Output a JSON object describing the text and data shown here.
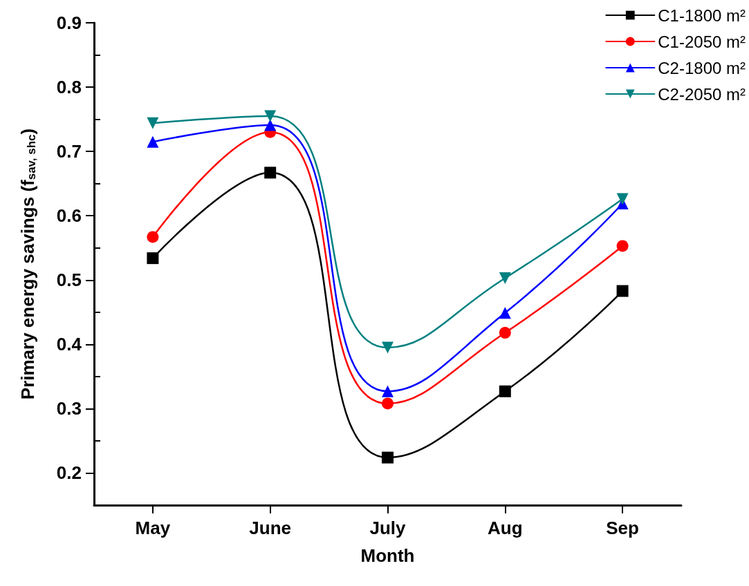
{
  "chart_data": {
    "type": "line",
    "xlabel": "Month",
    "ylabel": "Primary energy savings (f$_{sav, shc}$)",
    "categories": [
      "May",
      "June",
      "July",
      "Aug",
      "Sep"
    ],
    "series": [
      {
        "name": "C1-1800 m²",
        "color": "#000000",
        "marker": "square",
        "values": [
          0.534,
          0.667,
          0.224,
          0.327,
          0.483
        ]
      },
      {
        "name": "C1-2050 m²",
        "color": "#ff0000",
        "marker": "circle",
        "values": [
          0.567,
          0.73,
          0.308,
          0.418,
          0.553
        ]
      },
      {
        "name": "C2-1800 m²",
        "color": "#0000ff",
        "marker": "triangle",
        "values": [
          0.715,
          0.741,
          0.327,
          0.449,
          0.619
        ]
      },
      {
        "name": "C2-2050 m²",
        "color": "#008080",
        "marker": "triangle-down",
        "values": [
          0.744,
          0.755,
          0.395,
          0.503,
          0.626
        ]
      }
    ],
    "ylim": [
      0.15,
      0.9
    ],
    "yticks": [
      0.2,
      {
        "value": 0.25,
        "label": null
      },
      0.3,
      {
        "value": 0.35,
        "label": null
      },
      0.4,
      {
        "value": 0.45,
        "label": null
      },
      0.5,
      {
        "value": 0.55,
        "label": null
      },
      0.6,
      {
        "value": 0.65,
        "label": null
      },
      0.7,
      {
        "value": 0.75,
        "label": null
      },
      0.8,
      {
        "value": 0.85,
        "label": null
      },
      0.9
    ],
    "grid": false,
    "legend": "top right",
    "line_style": "solid"
  }
}
